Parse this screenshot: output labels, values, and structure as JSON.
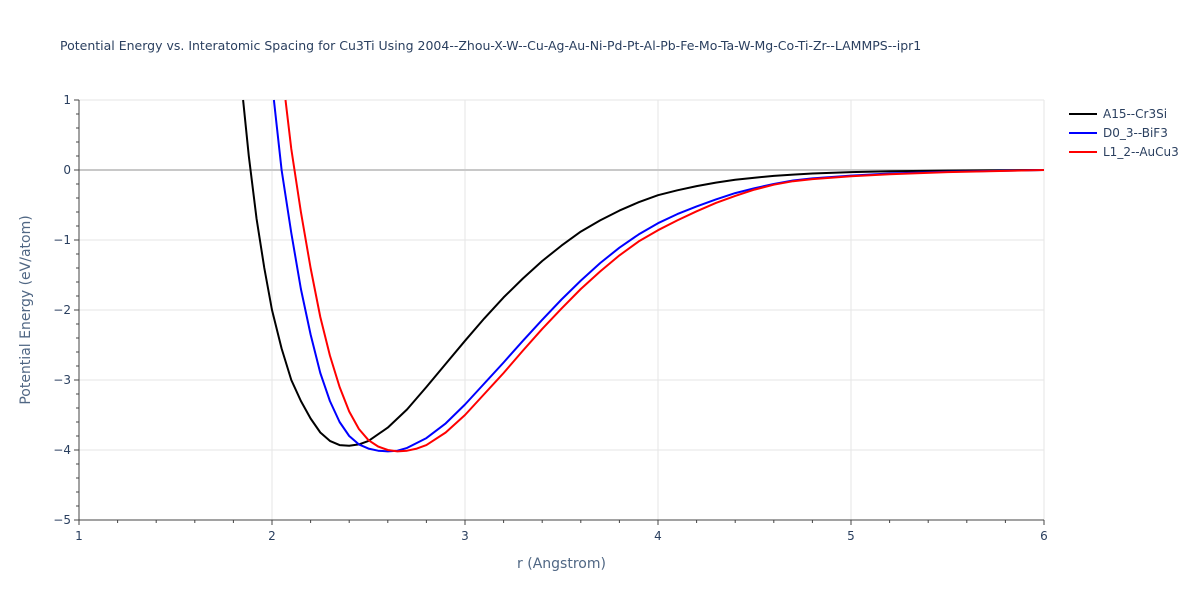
{
  "chart_data": {
    "type": "line",
    "title": "Potential Energy vs. Interatomic Spacing for Cu3Ti Using 2004--Zhou-X-W--Cu-Ag-Au-Ni-Pd-Pt-Al-Pb-Fe-Mo-Ta-W-Mg-Co-Ti-Zr--LAMMPS--ipr1",
    "xlabel": "r (Angstrom)",
    "ylabel": "Potential Energy (eV/atom)",
    "xlim": [
      1,
      6
    ],
    "ylim": [
      -5,
      1
    ],
    "xticks": [
      1,
      2,
      3,
      4,
      5,
      6
    ],
    "yticks": [
      1,
      0,
      -1,
      -2,
      -3,
      -4,
      -5
    ],
    "grid": true,
    "legend_position": "top-right",
    "series": [
      {
        "name": "A15--Cr3Si",
        "color": "#000000",
        "points": [
          [
            1.85,
            1.0
          ],
          [
            1.88,
            0.2
          ],
          [
            1.92,
            -0.7
          ],
          [
            1.96,
            -1.4
          ],
          [
            2.0,
            -2.0
          ],
          [
            2.05,
            -2.55
          ],
          [
            2.1,
            -3.0
          ],
          [
            2.15,
            -3.3
          ],
          [
            2.2,
            -3.55
          ],
          [
            2.25,
            -3.75
          ],
          [
            2.3,
            -3.87
          ],
          [
            2.35,
            -3.93
          ],
          [
            2.4,
            -3.94
          ],
          [
            2.45,
            -3.92
          ],
          [
            2.5,
            -3.87
          ],
          [
            2.6,
            -3.68
          ],
          [
            2.7,
            -3.42
          ],
          [
            2.8,
            -3.1
          ],
          [
            2.9,
            -2.77
          ],
          [
            3.0,
            -2.44
          ],
          [
            3.1,
            -2.12
          ],
          [
            3.2,
            -1.82
          ],
          [
            3.3,
            -1.55
          ],
          [
            3.4,
            -1.3
          ],
          [
            3.5,
            -1.08
          ],
          [
            3.6,
            -0.88
          ],
          [
            3.7,
            -0.72
          ],
          [
            3.8,
            -0.58
          ],
          [
            3.9,
            -0.46
          ],
          [
            4.0,
            -0.36
          ],
          [
            4.1,
            -0.29
          ],
          [
            4.2,
            -0.23
          ],
          [
            4.3,
            -0.18
          ],
          [
            4.4,
            -0.14
          ],
          [
            4.5,
            -0.11
          ],
          [
            4.6,
            -0.085
          ],
          [
            4.7,
            -0.065
          ],
          [
            4.8,
            -0.05
          ],
          [
            5.0,
            -0.03
          ],
          [
            5.2,
            -0.018
          ],
          [
            5.5,
            -0.008
          ],
          [
            6.0,
            0.0
          ]
        ]
      },
      {
        "name": "D0_3--BiF3",
        "color": "#0000ff",
        "points": [
          [
            2.01,
            1.0
          ],
          [
            2.05,
            0.0
          ],
          [
            2.1,
            -0.9
          ],
          [
            2.15,
            -1.7
          ],
          [
            2.2,
            -2.35
          ],
          [
            2.25,
            -2.9
          ],
          [
            2.3,
            -3.3
          ],
          [
            2.35,
            -3.6
          ],
          [
            2.4,
            -3.8
          ],
          [
            2.45,
            -3.92
          ],
          [
            2.5,
            -3.98
          ],
          [
            2.55,
            -4.01
          ],
          [
            2.6,
            -4.02
          ],
          [
            2.65,
            -4.01
          ],
          [
            2.7,
            -3.97
          ],
          [
            2.8,
            -3.83
          ],
          [
            2.9,
            -3.62
          ],
          [
            3.0,
            -3.35
          ],
          [
            3.1,
            -3.05
          ],
          [
            3.2,
            -2.75
          ],
          [
            3.3,
            -2.44
          ],
          [
            3.4,
            -2.14
          ],
          [
            3.5,
            -1.85
          ],
          [
            3.6,
            -1.58
          ],
          [
            3.7,
            -1.33
          ],
          [
            3.8,
            -1.11
          ],
          [
            3.9,
            -0.92
          ],
          [
            4.0,
            -0.76
          ],
          [
            4.1,
            -0.63
          ],
          [
            4.2,
            -0.52
          ],
          [
            4.3,
            -0.42
          ],
          [
            4.4,
            -0.33
          ],
          [
            4.5,
            -0.26
          ],
          [
            4.6,
            -0.2
          ],
          [
            4.7,
            -0.15
          ],
          [
            4.8,
            -0.12
          ],
          [
            5.0,
            -0.08
          ],
          [
            5.2,
            -0.05
          ],
          [
            5.5,
            -0.025
          ],
          [
            6.0,
            0.0
          ]
        ]
      },
      {
        "name": "L1_2--AuCu3",
        "color": "#ff0000",
        "points": [
          [
            2.07,
            1.0
          ],
          [
            2.1,
            0.3
          ],
          [
            2.15,
            -0.6
          ],
          [
            2.2,
            -1.4
          ],
          [
            2.25,
            -2.1
          ],
          [
            2.3,
            -2.65
          ],
          [
            2.35,
            -3.1
          ],
          [
            2.4,
            -3.45
          ],
          [
            2.45,
            -3.7
          ],
          [
            2.5,
            -3.86
          ],
          [
            2.55,
            -3.95
          ],
          [
            2.6,
            -4.0
          ],
          [
            2.65,
            -4.02
          ],
          [
            2.7,
            -4.01
          ],
          [
            2.75,
            -3.98
          ],
          [
            2.8,
            -3.93
          ],
          [
            2.9,
            -3.75
          ],
          [
            3.0,
            -3.5
          ],
          [
            3.1,
            -3.2
          ],
          [
            3.2,
            -2.9
          ],
          [
            3.3,
            -2.58
          ],
          [
            3.4,
            -2.27
          ],
          [
            3.5,
            -1.98
          ],
          [
            3.6,
            -1.7
          ],
          [
            3.7,
            -1.45
          ],
          [
            3.8,
            -1.22
          ],
          [
            3.9,
            -1.02
          ],
          [
            4.0,
            -0.86
          ],
          [
            4.1,
            -0.72
          ],
          [
            4.2,
            -0.59
          ],
          [
            4.3,
            -0.47
          ],
          [
            4.4,
            -0.37
          ],
          [
            4.5,
            -0.28
          ],
          [
            4.6,
            -0.21
          ],
          [
            4.7,
            -0.16
          ],
          [
            4.8,
            -0.13
          ],
          [
            5.0,
            -0.09
          ],
          [
            5.2,
            -0.06
          ],
          [
            5.5,
            -0.03
          ],
          [
            6.0,
            0.0
          ]
        ]
      }
    ]
  }
}
